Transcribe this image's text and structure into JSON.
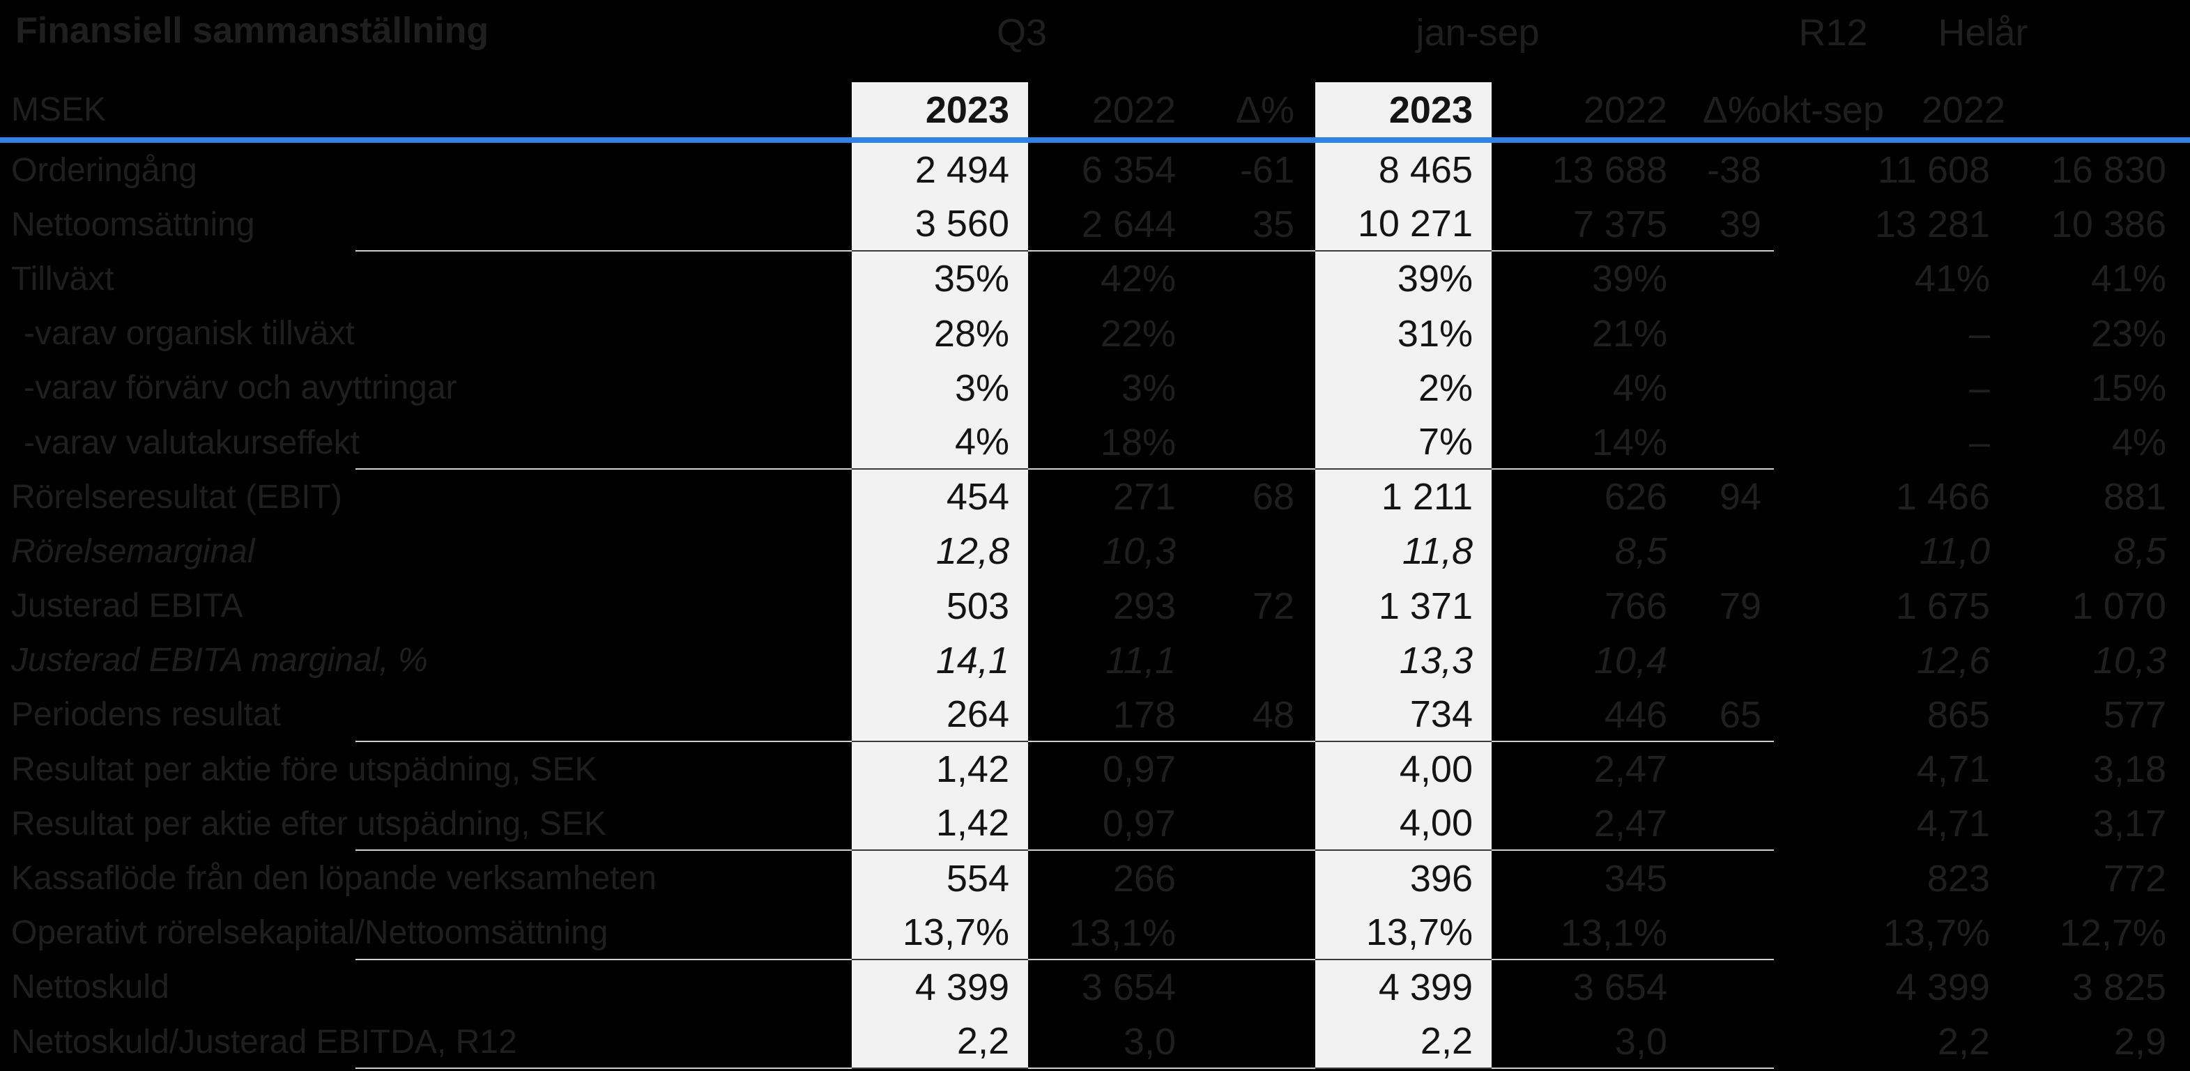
{
  "title": "Finansiell sammanställning",
  "group_headers": {
    "q3": "Q3",
    "ytd": "jan-sep",
    "r12": "R12",
    "fy": "Helår"
  },
  "column_headers": {
    "label": "MSEK",
    "q3_2023": "2023",
    "q3_2022": "2022",
    "q3_delta": "Δ%",
    "ytd_2023": "2023",
    "ytd_2022": "2022",
    "ytd_delta": "Δ%",
    "r12": "okt-sep",
    "fy": "2022"
  },
  "colors": {
    "background": "#000000",
    "accent_line": "#2e82e8",
    "highlight_bg": "#f2f2f2",
    "highlight_text": "#141414",
    "faint_text": "#1f1f1f",
    "separator_on_black": "#d0d0d0",
    "separator_on_light": "#3a3a3a"
  },
  "rows": [
    {
      "label": "Orderingång",
      "c": [
        "2 494",
        "6 354",
        "-61",
        "8 465",
        "13 688",
        "-38",
        "11 608",
        "16 830"
      ]
    },
    {
      "label": "Nettoomsättning",
      "c": [
        "3 560",
        "2 644",
        "35",
        "10 271",
        "7 375",
        "39",
        "13 281",
        "10 386"
      ]
    },
    {
      "label": "Tillväxt",
      "c": [
        "35%",
        "42%",
        "",
        "39%",
        "39%",
        "",
        "41%",
        "41%"
      ]
    },
    {
      "label": "-varav organisk tillväxt",
      "c": [
        "28%",
        "22%",
        "",
        "31%",
        "21%",
        "",
        "–",
        "23%"
      ]
    },
    {
      "label": "-varav förvärv och avyttringar",
      "c": [
        "3%",
        "3%",
        "",
        "2%",
        "4%",
        "",
        "–",
        "15%"
      ]
    },
    {
      "label": "-varav valutakurseffekt",
      "c": [
        "4%",
        "18%",
        "",
        "7%",
        "14%",
        "",
        "–",
        "4%"
      ]
    },
    {
      "label": "Rörelseresultat (EBIT)",
      "c": [
        "454",
        "271",
        "68",
        "1 211",
        "626",
        "94",
        "1 466",
        "881"
      ]
    },
    {
      "label": "Rörelsemarginal",
      "c": [
        "12,8",
        "10,3",
        "",
        "11,8",
        "8,5",
        "",
        "11,0",
        "8,5"
      ]
    },
    {
      "label": "Justerad EBITA",
      "c": [
        "503",
        "293",
        "72",
        "1 371",
        "766",
        "79",
        "1 675",
        "1 070"
      ]
    },
    {
      "label": "Justerad EBITA marginal, %",
      "c": [
        "14,1",
        "11,1",
        "",
        "13,3",
        "10,4",
        "",
        "12,6",
        "10,3"
      ]
    },
    {
      "label": "Periodens resultat",
      "c": [
        "264",
        "178",
        "48",
        "734",
        "446",
        "65",
        "865",
        "577"
      ]
    },
    {
      "label": "Resultat per aktie före utspädning, SEK",
      "c": [
        "1,42",
        "0,97",
        "",
        "4,00",
        "2,47",
        "",
        "4,71",
        "3,18"
      ]
    },
    {
      "label": "Resultat per aktie efter utspädning, SEK",
      "c": [
        "1,42",
        "0,97",
        "",
        "4,00",
        "2,47",
        "",
        "4,71",
        "3,17"
      ]
    },
    {
      "label": "Kassaflöde från den löpande verksamheten",
      "c": [
        "554",
        "266",
        "",
        "396",
        "345",
        "",
        "823",
        "772"
      ]
    },
    {
      "label": "Operativt rörelsekapital/Nettoomsättning",
      "c": [
        "13,7%",
        "13,1%",
        "",
        "13,7%",
        "13,1%",
        "",
        "13,7%",
        "12,7%"
      ]
    },
    {
      "label": "Nettoskuld",
      "c": [
        "4 399",
        "3 654",
        "",
        "4 399",
        "3 654",
        "",
        "4 399",
        "3 825"
      ]
    },
    {
      "label": "Nettoskuld/Justerad EBITDA, R12",
      "c": [
        "2,2",
        "3,0",
        "",
        "2,2",
        "3,0",
        "",
        "2,2",
        "2,9"
      ]
    }
  ]
}
